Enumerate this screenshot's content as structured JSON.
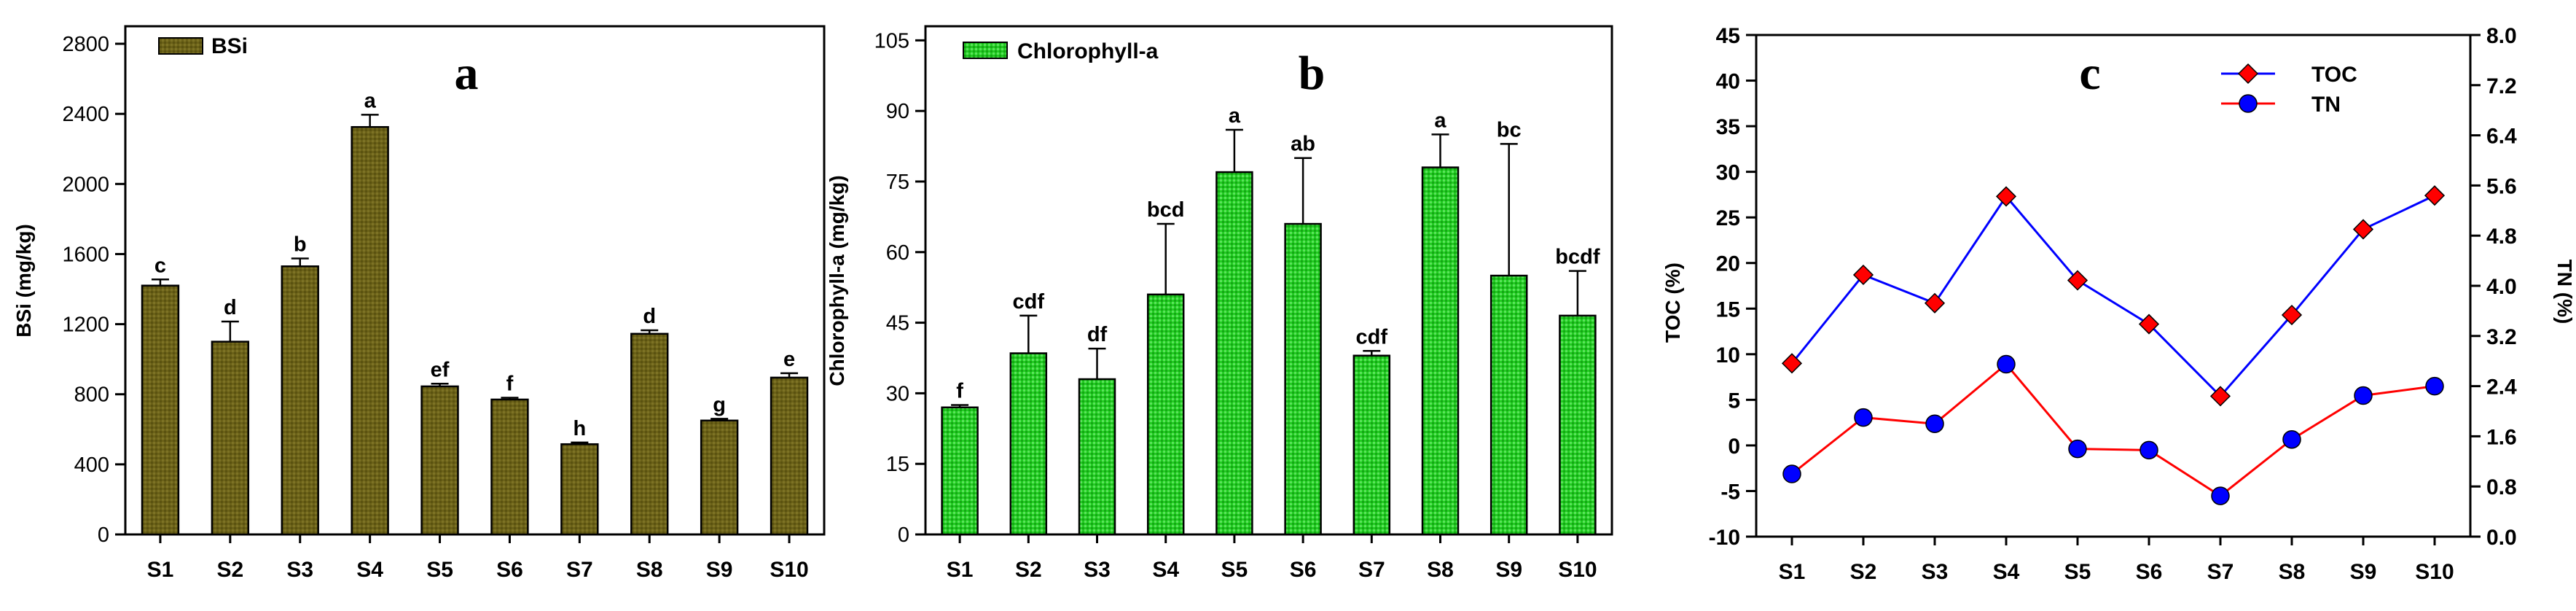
{
  "chart_data": [
    {
      "type": "bar",
      "panel_letter": "a",
      "categories": [
        "S1",
        "S2",
        "S3",
        "S4",
        "S5",
        "S6",
        "S7",
        "S8",
        "S9",
        "S10"
      ],
      "series": [
        {
          "name": "BSi",
          "values": [
            1420,
            1100,
            1530,
            2325,
            845,
            770,
            515,
            1145,
            650,
            895
          ]
        }
      ],
      "errors": [
        35,
        115,
        45,
        70,
        15,
        10,
        10,
        20,
        10,
        25
      ],
      "letters": [
        "c",
        "d",
        "b",
        "a",
        "ef",
        "f",
        "h",
        "d",
        "g",
        "e"
      ],
      "ylabel": "BSi (mg/kg)",
      "xlabel": "",
      "ylim": [
        0,
        2900
      ],
      "yticks": [
        0,
        400,
        800,
        1200,
        1600,
        2000,
        2400,
        2800
      ],
      "legend": {
        "label": "BSi",
        "position": "top-left"
      },
      "colors": {
        "fill": "#6b6118",
        "stroke": "#000000"
      }
    },
    {
      "type": "bar",
      "panel_letter": "b",
      "categories": [
        "S1",
        "S2",
        "S3",
        "S4",
        "S5",
        "S6",
        "S7",
        "S8",
        "S9",
        "S10"
      ],
      "series": [
        {
          "name": "Chlorophyll-a",
          "values": [
            27,
            38.5,
            33,
            51,
            77,
            66,
            38,
            78,
            55,
            46.5
          ]
        }
      ],
      "errors": [
        0.5,
        8,
        6.5,
        15,
        9,
        14,
        1,
        7,
        28,
        9.5
      ],
      "letters": [
        "f",
        "cdf",
        "df",
        "bcd",
        "a",
        "ab",
        "cdf",
        "a",
        "bc",
        "bcdf"
      ],
      "ylabel": "Chlorophyll-a (mg/kg)",
      "xlabel": "",
      "ylim": [
        0,
        108
      ],
      "yticks": [
        0,
        15,
        30,
        45,
        60,
        75,
        90,
        105
      ],
      "legend": {
        "label": "Chlorophyll-a",
        "position": "top-left"
      },
      "colors": {
        "fill": "#22cc22",
        "stroke": "#000000"
      }
    },
    {
      "type": "line",
      "panel_letter": "c",
      "categories": [
        "S1",
        "S2",
        "S3",
        "S4",
        "S5",
        "S6",
        "S7",
        "S8",
        "S9",
        "S10"
      ],
      "series": [
        {
          "name": "TOC",
          "axis": "left",
          "values": [
            9,
            18.7,
            15.6,
            27.3,
            18.1,
            13.3,
            5.4,
            14.3,
            23.7,
            27.4
          ],
          "color": "#0000ff",
          "marker": "diamond",
          "marker_color": "#ff0000"
        },
        {
          "name": "TN",
          "axis": "right",
          "values": [
            1.0,
            1.9,
            1.8,
            2.75,
            1.4,
            1.38,
            0.65,
            1.55,
            2.25,
            2.4
          ],
          "color": "#ff0000",
          "marker": "circle",
          "marker_color": "#0000ff"
        }
      ],
      "ylabel": "TOC (%)",
      "y2label": "TN (%)",
      "ylim": [
        -10,
        45
      ],
      "y2lim": [
        0,
        8
      ],
      "yticks": [
        -10,
        -5,
        0,
        5,
        10,
        15,
        20,
        25,
        30,
        35,
        40,
        45
      ],
      "y2ticks": [
        "0.0",
        "0.8",
        "1.6",
        "2.4",
        "3.2",
        "4.0",
        "4.8",
        "5.6",
        "6.4",
        "7.2",
        "8.0"
      ],
      "legend": {
        "labels": [
          "TOC",
          "TN"
        ],
        "position": "top-right"
      }
    }
  ]
}
